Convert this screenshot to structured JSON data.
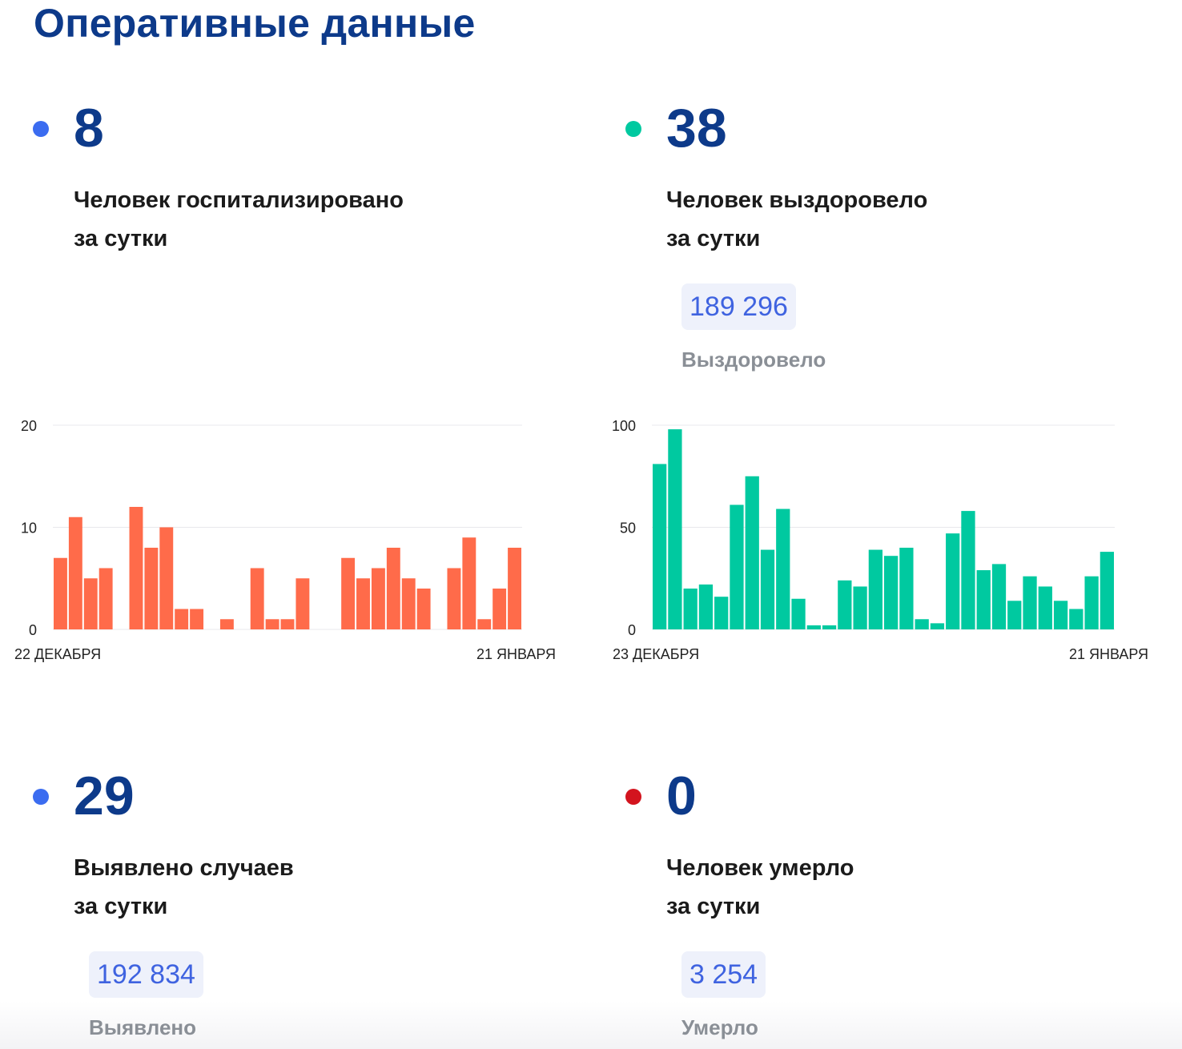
{
  "title": "Оперативные данные",
  "colors": {
    "title": "#0d3a8a",
    "hosp_bar": "#ff6b4a",
    "recovered_bar": "#00c9a0",
    "dot_blue": "#3b6cf0",
    "dot_green": "#00c9a0",
    "dot_red": "#d3141e",
    "badge_text": "#3f63e0"
  },
  "stats": {
    "hospitalized": {
      "value": "8",
      "caption_line1": "Человек госпитализировано",
      "caption_line2": "за сутки"
    },
    "recovered": {
      "value": "38",
      "caption_line1": "Человек выздоровело",
      "caption_line2": "за сутки",
      "total": "189 296",
      "total_label": "Выздоровело"
    },
    "cases": {
      "value": "29",
      "caption_line1": "Выявлено случаев",
      "caption_line2": "за сутки",
      "total": "192 834",
      "total_label": "Выявлено"
    },
    "deaths": {
      "value": "0",
      "caption_line1": "Человек умерло",
      "caption_line2": "за сутки",
      "total": "3 254",
      "total_label": "Умерло"
    }
  },
  "chart_data": [
    {
      "type": "bar",
      "color": "#ff6b4a",
      "ylim": [
        0,
        20
      ],
      "yticks": [
        0,
        10,
        20
      ],
      "x_start_label": "22 ДЕКАБРЯ",
      "x_end_label": "21 ЯНВАРЯ",
      "values": [
        7,
        11,
        5,
        6,
        0,
        12,
        8,
        10,
        2,
        2,
        0,
        1,
        0,
        6,
        1,
        1,
        5,
        0,
        0,
        7,
        5,
        6,
        8,
        5,
        4,
        0,
        6,
        9,
        1,
        4,
        8
      ],
      "grid": true
    },
    {
      "type": "bar",
      "color": "#00c9a0",
      "ylim": [
        0,
        100
      ],
      "yticks": [
        0,
        50,
        100
      ],
      "x_start_label": "23 ДЕКАБРЯ",
      "x_end_label": "21 ЯНВАРЯ",
      "values": [
        81,
        98,
        20,
        22,
        16,
        61,
        75,
        39,
        59,
        15,
        2,
        2,
        24,
        21,
        39,
        36,
        40,
        5,
        3,
        47,
        58,
        29,
        32,
        14,
        26,
        21,
        14,
        10,
        26,
        38
      ],
      "grid": true
    }
  ]
}
